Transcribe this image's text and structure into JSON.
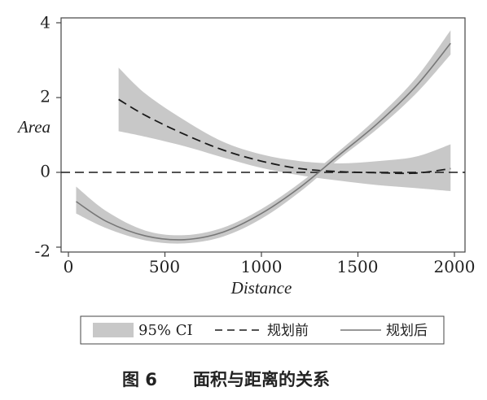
{
  "chart_data": {
    "type": "line",
    "title": "",
    "xlabel": "Distance",
    "ylabel": "Area",
    "xlim": [
      0,
      2000
    ],
    "ylim": [
      -2,
      4
    ],
    "xticks": [
      0,
      500,
      1000,
      1500,
      2000
    ],
    "yticks": [
      -2,
      0,
      2,
      4
    ],
    "xtick_labels": [
      "0",
      "500",
      "1000",
      "1500",
      "2000"
    ],
    "ytick_labels": [
      "-2",
      "0",
      "2",
      "4"
    ],
    "grid": false,
    "reference_line": {
      "y": 0,
      "style": "dash"
    },
    "series": [
      {
        "name": "规划前",
        "style": "dashed",
        "color": "#1a1a1a",
        "x": [
          260,
          400,
          600,
          800,
          1000,
          1200,
          1400,
          1600,
          1800,
          1980
        ],
        "y": [
          1.95,
          1.52,
          1.02,
          0.6,
          0.3,
          0.1,
          0.02,
          -0.01,
          -0.02,
          0.1
        ],
        "ci_lower": [
          1.1,
          0.95,
          0.7,
          0.4,
          0.12,
          -0.08,
          -0.22,
          -0.34,
          -0.42,
          -0.5
        ],
        "ci_upper": [
          2.8,
          2.1,
          1.4,
          0.82,
          0.48,
          0.3,
          0.24,
          0.3,
          0.42,
          0.75
        ]
      },
      {
        "name": "规划后",
        "style": "solid",
        "color": "#777777",
        "x": [
          40,
          200,
          400,
          600,
          800,
          1000,
          1200,
          1400,
          1600,
          1800,
          1980
        ],
        "y": [
          -0.78,
          -1.32,
          -1.7,
          -1.8,
          -1.6,
          -1.1,
          -0.4,
          0.45,
          1.3,
          2.3,
          3.45
        ],
        "ci_lower": [
          -1.1,
          -1.5,
          -1.82,
          -1.9,
          -1.72,
          -1.24,
          -0.52,
          0.35,
          1.16,
          2.1,
          3.15
        ],
        "ci_upper": [
          -0.38,
          -1.05,
          -1.56,
          -1.68,
          -1.48,
          -0.98,
          -0.28,
          0.56,
          1.46,
          2.52,
          3.8
        ]
      }
    ],
    "legend": {
      "placement": "bottom",
      "items": [
        {
          "label": "95% CI",
          "kind": "band",
          "color": "#c8c8c8"
        },
        {
          "label": "规划前",
          "kind": "dashed",
          "color": "#1a1a1a"
        },
        {
          "label": "规划后",
          "kind": "solid",
          "color": "#777777"
        }
      ]
    },
    "band_color": "#c8c8c8"
  },
  "caption": {
    "figure_label": "图 6",
    "text": "面积与距离的关系"
  }
}
